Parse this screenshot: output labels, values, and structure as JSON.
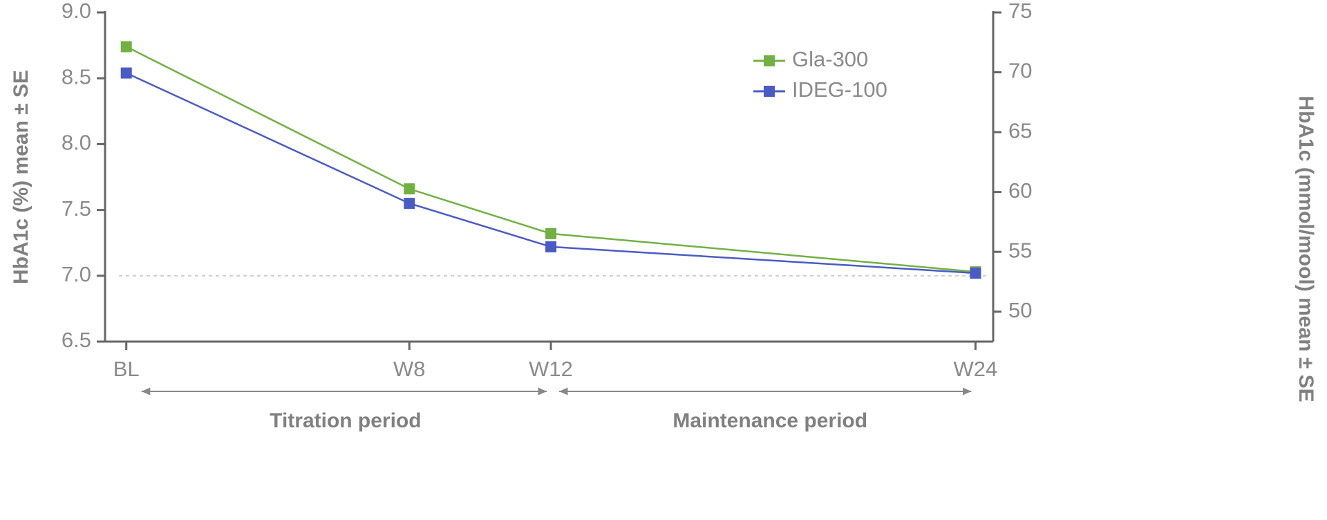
{
  "chart_data": {
    "type": "line",
    "y_label": "HbA1c (%) mean ± SE",
    "y2_label": "HbA1c (mmol/mool) mean ± SE",
    "x": [
      0,
      8,
      12,
      24
    ],
    "xlim": [
      -0.6,
      24.5
    ],
    "xticks": [
      {
        "value": 0,
        "label": "BL"
      },
      {
        "value": 8,
        "label": "W8"
      },
      {
        "value": 12,
        "label": "W12"
      },
      {
        "value": 24,
        "label": "W24"
      }
    ],
    "ylim": [
      6.5,
      9.0
    ],
    "yticks": [
      {
        "value": 6.5,
        "label": "6.5"
      },
      {
        "value": 7.0,
        "label": "7.0"
      },
      {
        "value": 7.5,
        "label": "7.5"
      },
      {
        "value": 8.0,
        "label": "8.0"
      },
      {
        "value": 8.5,
        "label": "8.5"
      },
      {
        "value": 9.0,
        "label": "9.0"
      }
    ],
    "y2lim": [
      47.5,
      75
    ],
    "y2ticks": [
      50,
      55,
      60,
      65,
      70,
      75
    ],
    "reference_line": 7.0,
    "legend": "upper right",
    "series": [
      {
        "name": "Gla-300",
        "color": "#72b043",
        "values": [
          8.74,
          7.66,
          7.32,
          7.03
        ]
      },
      {
        "name": "IDEG-100",
        "color": "#4a5bc4",
        "values": [
          8.54,
          7.55,
          7.22,
          7.02
        ]
      }
    ],
    "periods": [
      {
        "label": "Titration period",
        "from": 0,
        "to": 12
      },
      {
        "label": "Maintenance period",
        "from": 12,
        "to": 24
      }
    ]
  }
}
